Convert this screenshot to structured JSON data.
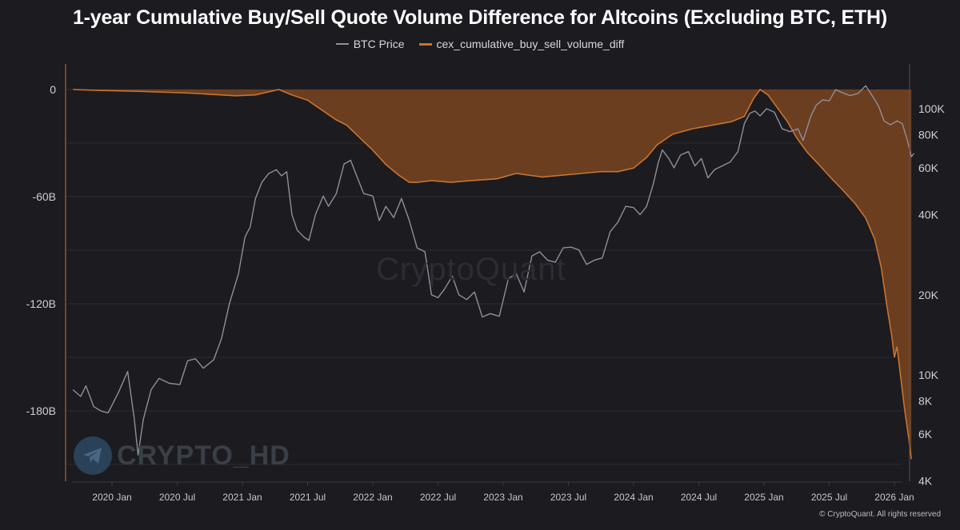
{
  "chart_data": {
    "type": "line",
    "title": "1-year Cumulative Buy/Sell Quote Volume Difference for Altcoins (Excluding BTC, ETH)",
    "legend_position": "top-center",
    "grid": true,
    "x_ticks": [
      "2020 Jan",
      "2020 Jul",
      "2021 Jan",
      "2021 Jul",
      "2022 Jan",
      "2022 Jul",
      "2023 Jan",
      "2023 Jul",
      "2024 Jan",
      "2024 Jul",
      "2025 Jan",
      "2025 Jul",
      "2026 Jan"
    ],
    "x_range": [
      2019.67,
      2026.3
    ],
    "y_left": {
      "ticks": [
        "0",
        "-60B",
        "-120B",
        "-180B"
      ],
      "values": [
        0,
        -60,
        -120,
        -180
      ],
      "range": [
        0,
        -220
      ],
      "unit": "B"
    },
    "y_right": {
      "scale": "log",
      "ticks": [
        "100K",
        "80K",
        "60K",
        "40K",
        "20K",
        "10K",
        "8K",
        "6K",
        "4K"
      ],
      "values": [
        100000,
        80000,
        60000,
        40000,
        20000,
        10000,
        8000,
        6000,
        4000
      ],
      "range": [
        4000,
        130000
      ]
    },
    "series": [
      {
        "name": "BTC Price",
        "axis": "right",
        "color": "#8f8f99",
        "points": [
          [
            2019.7,
            8800
          ],
          [
            2019.76,
            8300
          ],
          [
            2019.8,
            9100
          ],
          [
            2019.86,
            7600
          ],
          [
            2019.92,
            7300
          ],
          [
            2019.97,
            7200
          ],
          [
            2020.05,
            8600
          ],
          [
            2020.12,
            10300
          ],
          [
            2020.17,
            6900
          ],
          [
            2020.2,
            5000
          ],
          [
            2020.24,
            6800
          ],
          [
            2020.3,
            8800
          ],
          [
            2020.36,
            9700
          ],
          [
            2020.44,
            9300
          ],
          [
            2020.52,
            9200
          ],
          [
            2020.58,
            11300
          ],
          [
            2020.64,
            11500
          ],
          [
            2020.7,
            10600
          ],
          [
            2020.78,
            11400
          ],
          [
            2020.84,
            13700
          ],
          [
            2020.9,
            18500
          ],
          [
            2020.97,
            24000
          ],
          [
            2021.02,
            33000
          ],
          [
            2021.06,
            36000
          ],
          [
            2021.1,
            46000
          ],
          [
            2021.15,
            53000
          ],
          [
            2021.2,
            57000
          ],
          [
            2021.26,
            59000
          ],
          [
            2021.3,
            56000
          ],
          [
            2021.34,
            58000
          ],
          [
            2021.38,
            40000
          ],
          [
            2021.42,
            35000
          ],
          [
            2021.47,
            33000
          ],
          [
            2021.51,
            32000
          ],
          [
            2021.56,
            40000
          ],
          [
            2021.62,
            47000
          ],
          [
            2021.66,
            43000
          ],
          [
            2021.72,
            48000
          ],
          [
            2021.78,
            62000
          ],
          [
            2021.83,
            64000
          ],
          [
            2021.87,
            57000
          ],
          [
            2021.93,
            48000
          ],
          [
            2022.0,
            47000
          ],
          [
            2022.05,
            38000
          ],
          [
            2022.1,
            43000
          ],
          [
            2022.16,
            39000
          ],
          [
            2022.22,
            46000
          ],
          [
            2022.28,
            38000
          ],
          [
            2022.34,
            30000
          ],
          [
            2022.4,
            29000
          ],
          [
            2022.45,
            20000
          ],
          [
            2022.5,
            19500
          ],
          [
            2022.55,
            21000
          ],
          [
            2022.61,
            23500
          ],
          [
            2022.66,
            20000
          ],
          [
            2022.72,
            19200
          ],
          [
            2022.78,
            20500
          ],
          [
            2022.84,
            16500
          ],
          [
            2022.9,
            17000
          ],
          [
            2022.97,
            16600
          ],
          [
            2023.04,
            23000
          ],
          [
            2023.1,
            24000
          ],
          [
            2023.16,
            20500
          ],
          [
            2023.22,
            28000
          ],
          [
            2023.28,
            29000
          ],
          [
            2023.34,
            27000
          ],
          [
            2023.4,
            26500
          ],
          [
            2023.46,
            30000
          ],
          [
            2023.52,
            30200
          ],
          [
            2023.58,
            29500
          ],
          [
            2023.64,
            26000
          ],
          [
            2023.7,
            27000
          ],
          [
            2023.76,
            27500
          ],
          [
            2023.82,
            34500
          ],
          [
            2023.88,
            37500
          ],
          [
            2023.94,
            43000
          ],
          [
            2024.0,
            42500
          ],
          [
            2024.05,
            40000
          ],
          [
            2024.1,
            43000
          ],
          [
            2024.15,
            52000
          ],
          [
            2024.19,
            63000
          ],
          [
            2024.22,
            70000
          ],
          [
            2024.27,
            65000
          ],
          [
            2024.31,
            60000
          ],
          [
            2024.36,
            67000
          ],
          [
            2024.42,
            69000
          ],
          [
            2024.47,
            61000
          ],
          [
            2024.52,
            65000
          ],
          [
            2024.57,
            55000
          ],
          [
            2024.62,
            59000
          ],
          [
            2024.68,
            61000
          ],
          [
            2024.74,
            63000
          ],
          [
            2024.8,
            69000
          ],
          [
            2024.85,
            88000
          ],
          [
            2024.89,
            96000
          ],
          [
            2024.93,
            98000
          ],
          [
            2024.97,
            94000
          ],
          [
            2025.02,
            100000
          ],
          [
            2025.08,
            97000
          ],
          [
            2025.14,
            84000
          ],
          [
            2025.2,
            82000
          ],
          [
            2025.26,
            84000
          ],
          [
            2025.3,
            76000
          ],
          [
            2025.36,
            94000
          ],
          [
            2025.4,
            103000
          ],
          [
            2025.45,
            108000
          ],
          [
            2025.5,
            107000
          ],
          [
            2025.55,
            118000
          ],
          [
            2025.6,
            115000
          ],
          [
            2025.66,
            112000
          ],
          [
            2025.72,
            114000
          ],
          [
            2025.78,
            122000
          ],
          [
            2025.84,
            110000
          ],
          [
            2025.88,
            102000
          ],
          [
            2025.92,
            90000
          ],
          [
            2025.97,
            87000
          ],
          [
            2026.02,
            90000
          ],
          [
            2026.06,
            88000
          ],
          [
            2026.1,
            76000
          ],
          [
            2026.13,
            66000
          ],
          [
            2026.15,
            68000
          ]
        ]
      },
      {
        "name": "cex_cumulative_buy_sell_volume_diff",
        "axis": "left",
        "color": "#c8732f",
        "fill": "#7a4421",
        "points": [
          [
            2019.7,
            0
          ],
          [
            2019.9,
            -0.5
          ],
          [
            2020.2,
            -1
          ],
          [
            2020.6,
            -2
          ],
          [
            2020.95,
            -3.5
          ],
          [
            2021.1,
            -3
          ],
          [
            2021.22,
            -1
          ],
          [
            2021.28,
            0
          ],
          [
            2021.38,
            -3
          ],
          [
            2021.5,
            -6
          ],
          [
            2021.62,
            -12
          ],
          [
            2021.72,
            -17
          ],
          [
            2021.8,
            -20
          ],
          [
            2021.9,
            -27
          ],
          [
            2022.0,
            -34
          ],
          [
            2022.1,
            -42
          ],
          [
            2022.2,
            -48
          ],
          [
            2022.28,
            -52
          ],
          [
            2022.34,
            -52
          ],
          [
            2022.45,
            -51
          ],
          [
            2022.6,
            -52
          ],
          [
            2022.75,
            -51
          ],
          [
            2022.95,
            -50
          ],
          [
            2023.1,
            -47
          ],
          [
            2023.3,
            -49
          ],
          [
            2023.45,
            -48
          ],
          [
            2023.6,
            -47
          ],
          [
            2023.75,
            -46
          ],
          [
            2023.88,
            -46
          ],
          [
            2024.0,
            -44
          ],
          [
            2024.1,
            -38
          ],
          [
            2024.18,
            -31
          ],
          [
            2024.3,
            -25
          ],
          [
            2024.45,
            -22
          ],
          [
            2024.6,
            -20
          ],
          [
            2024.75,
            -18
          ],
          [
            2024.85,
            -15
          ],
          [
            2024.92,
            -5
          ],
          [
            2024.97,
            0
          ],
          [
            2025.03,
            -3
          ],
          [
            2025.1,
            -10
          ],
          [
            2025.18,
            -18
          ],
          [
            2025.25,
            -27
          ],
          [
            2025.33,
            -35
          ],
          [
            2025.42,
            -42
          ],
          [
            2025.52,
            -50
          ],
          [
            2025.6,
            -56
          ],
          [
            2025.7,
            -64
          ],
          [
            2025.78,
            -72
          ],
          [
            2025.85,
            -84
          ],
          [
            2025.9,
            -100
          ],
          [
            2025.94,
            -120
          ],
          [
            2025.98,
            -138
          ],
          [
            2026.0,
            -150
          ],
          [
            2026.02,
            -144
          ],
          [
            2026.05,
            -162
          ],
          [
            2026.08,
            -180
          ],
          [
            2026.11,
            -195
          ],
          [
            2026.13,
            -207
          ]
        ]
      }
    ]
  },
  "watermark": "CryptoQuant",
  "channel_label": "CRYPTO_HD",
  "copyright": "© CryptoQuant. All rights reserved"
}
